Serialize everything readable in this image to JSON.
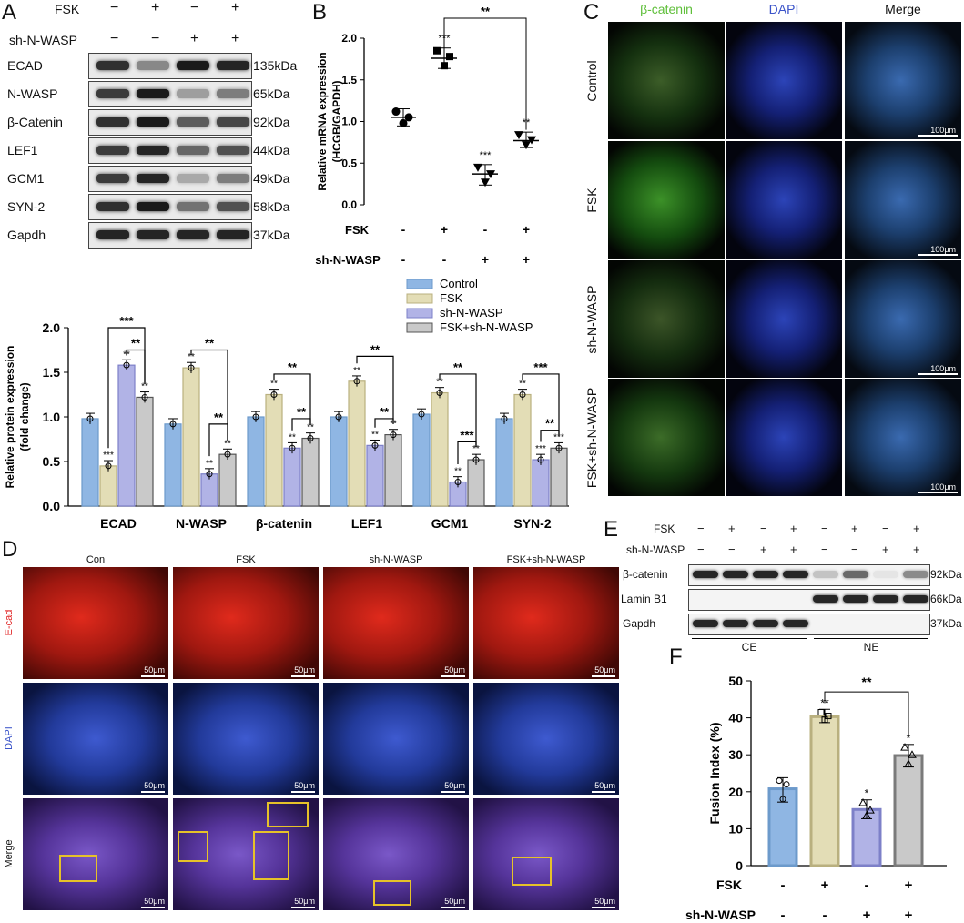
{
  "panels": {
    "A": "A",
    "B": "B",
    "C": "C",
    "D": "D",
    "E": "E",
    "F": "F"
  },
  "panelA": {
    "header_rows": [
      {
        "label": "FSK",
        "signs": [
          "−",
          "+",
          "−",
          "+"
        ]
      },
      {
        "label": "sh-N-WASP",
        "signs": [
          "−",
          "−",
          "+",
          "+"
        ]
      }
    ],
    "blots": [
      {
        "name": "ECAD",
        "kda": "135kDa",
        "intensity": [
          0.85,
          0.45,
          0.95,
          0.9
        ]
      },
      {
        "name": "N-WASP",
        "kda": "65kDa",
        "intensity": [
          0.8,
          0.95,
          0.35,
          0.5
        ]
      },
      {
        "name": "β-Catenin",
        "kda": "92kDa",
        "intensity": [
          0.85,
          0.95,
          0.65,
          0.75
        ]
      },
      {
        "name": "LEF1",
        "kda": "44kDa",
        "intensity": [
          0.8,
          0.9,
          0.6,
          0.7
        ]
      },
      {
        "name": "GCM1",
        "kda": "49kDa",
        "intensity": [
          0.8,
          0.9,
          0.3,
          0.5
        ]
      },
      {
        "name": "SYN-2",
        "kda": "58kDa",
        "intensity": [
          0.85,
          0.95,
          0.55,
          0.7
        ]
      },
      {
        "name": "Gapdh",
        "kda": "37kDa",
        "intensity": [
          0.9,
          0.9,
          0.9,
          0.9
        ]
      }
    ]
  },
  "chart_data": [
    {
      "type": "scatter",
      "panel": "B",
      "ylabel": "Relative mRNA expression (HCGB/GAPDH)",
      "ylim": [
        0,
        2.0
      ],
      "yticks": [
        "0.0",
        "0.5",
        "1.0",
        "1.5",
        "2.0"
      ],
      "row_labels": [
        "FSK",
        "sh-N-WASP"
      ],
      "groups": [
        {
          "fsk": "-",
          "sh": "-",
          "mean": 1.05,
          "points": [
            1.12,
            1.05,
            0.98
          ],
          "sig": ""
        },
        {
          "fsk": "+",
          "sh": "-",
          "mean": 1.76,
          "points": [
            1.85,
            1.78,
            1.67
          ],
          "sig": "***"
        },
        {
          "fsk": "-",
          "sh": "+",
          "mean": 0.37,
          "points": [
            0.45,
            0.37,
            0.27
          ],
          "sig": "***"
        },
        {
          "fsk": "+",
          "sh": "+",
          "mean": 0.77,
          "points": [
            0.84,
            0.78,
            0.72
          ],
          "sig": "**"
        }
      ],
      "bracket": {
        "from": 1,
        "to": 3,
        "label": "**"
      }
    },
    {
      "type": "bar",
      "panel": "A",
      "ylabel": "Relative protein expression (fold change)",
      "ylim": [
        0,
        2.0
      ],
      "yticks": [
        "0.0",
        "0.5",
        "1.0",
        "1.5",
        "2.0"
      ],
      "categories": [
        "ECAD",
        "N-WASP",
        "β-catenin",
        "LEF1",
        "GCM1",
        "SYN-2"
      ],
      "series": [
        {
          "name": "Control",
          "color": "#8fb6e3",
          "values": [
            0.98,
            0.92,
            1.0,
            1.0,
            1.03,
            0.98
          ]
        },
        {
          "name": "FSK",
          "color": "#e3ddb6",
          "values": [
            0.45,
            1.55,
            1.25,
            1.4,
            1.27,
            1.25
          ]
        },
        {
          "name": "sh-N-WASP",
          "color": "#b1b3e6",
          "values": [
            1.58,
            0.36,
            0.65,
            0.68,
            0.27,
            0.52
          ]
        },
        {
          "name": "FSK+sh-N-WASP",
          "color": "#c9c9c9",
          "values": [
            1.22,
            0.58,
            0.76,
            0.8,
            0.52,
            0.65
          ]
        }
      ],
      "star_labels": [
        [
          "",
          "***",
          "**",
          "**"
        ],
        [
          "",
          "**",
          "**",
          "**"
        ],
        [
          "",
          "**",
          "**",
          "**"
        ],
        [
          "",
          "**",
          "**",
          "**"
        ],
        [
          "",
          "**",
          "**",
          "**"
        ],
        [
          "",
          "**",
          "***",
          "***"
        ]
      ],
      "brackets": [
        {
          "cat": 0,
          "from": 1,
          "to": 3,
          "label": "***",
          "level": 2.0
        },
        {
          "cat": 0,
          "from": 2,
          "to": 3,
          "label": "**",
          "level": 1.75
        },
        {
          "cat": 1,
          "from": 1,
          "to": 3,
          "label": "**",
          "level": 1.75
        },
        {
          "cat": 1,
          "from": 2,
          "to": 3,
          "label": "**",
          "level": 0.92
        },
        {
          "cat": 2,
          "from": 1,
          "to": 3,
          "label": "**",
          "level": 1.48
        },
        {
          "cat": 2,
          "from": 2,
          "to": 3,
          "label": "**",
          "level": 0.98
        },
        {
          "cat": 3,
          "from": 1,
          "to": 3,
          "label": "**",
          "level": 1.68
        },
        {
          "cat": 3,
          "from": 2,
          "to": 3,
          "label": "**",
          "level": 0.98
        },
        {
          "cat": 4,
          "from": 1,
          "to": 3,
          "label": "**",
          "level": 1.48
        },
        {
          "cat": 4,
          "from": 2,
          "to": 3,
          "label": "***",
          "level": 0.72
        },
        {
          "cat": 5,
          "from": 1,
          "to": 3,
          "label": "***",
          "level": 1.48
        },
        {
          "cat": 5,
          "from": 2,
          "to": 3,
          "label": "**",
          "level": 0.85
        }
      ]
    },
    {
      "type": "bar",
      "panel": "F",
      "ylabel": "Fusion Index (%)",
      "ylim": [
        0,
        50
      ],
      "yticks": [
        "0",
        "10",
        "20",
        "30",
        "40",
        "50"
      ],
      "row_labels": [
        "FSK",
        "sh-N-WASP"
      ],
      "groups": [
        {
          "fsk": "-",
          "sh": "-",
          "value": 20.8,
          "color": "#8fb6e3",
          "edge": "#6c9acb",
          "points": [
            23,
            22,
            18
          ],
          "sig": ""
        },
        {
          "fsk": "+",
          "sh": "-",
          "value": 40.3,
          "color": "#e3ddb6",
          "edge": "#b9b07f",
          "points": [
            41.5,
            40.5,
            39.5
          ],
          "sig": "**"
        },
        {
          "fsk": "-",
          "sh": "+",
          "value": 15.2,
          "color": "#b1b3e6",
          "edge": "#7d80c8",
          "points": [
            17,
            15,
            13.5
          ],
          "sig": "*"
        },
        {
          "fsk": "+",
          "sh": "+",
          "value": 29.8,
          "color": "#c9c9c9",
          "edge": "#7a7a7a",
          "points": [
            32,
            30,
            27.5
          ],
          "sig": "*"
        }
      ],
      "bracket": {
        "from": 1,
        "to": 3,
        "label": "**"
      }
    }
  ],
  "panelC": {
    "columns": [
      "β-catenin",
      "DAPI",
      "Merge"
    ],
    "rows": [
      "Control",
      "FSK",
      "sh-N-WASP",
      "FSK+sh-N-WASP"
    ],
    "scale": "100μm"
  },
  "panelD": {
    "columns": [
      "Con",
      "FSK",
      "sh-N-WASP",
      "FSK+sh-N-WASP"
    ],
    "rows": [
      "E-cad",
      "DAPI",
      "Merge"
    ],
    "scale": "50μm"
  },
  "panelE": {
    "header_rows": [
      {
        "label": "FSK",
        "signs": [
          "−",
          "+",
          "−",
          "+",
          "−",
          "+",
          "−",
          "+"
        ]
      },
      {
        "label": "sh-N-WASP",
        "signs": [
          "−",
          "−",
          "+",
          "+",
          "−",
          "−",
          "+",
          "+"
        ]
      }
    ],
    "blots": [
      {
        "name": "β-catenin",
        "kda": "92kDa",
        "intensity": [
          0.9,
          0.9,
          0.9,
          0.9,
          0.2,
          0.6,
          0.05,
          0.45
        ]
      },
      {
        "name": "Lamin B1",
        "kda": "66kDa",
        "intensity": [
          0,
          0,
          0,
          0,
          0.9,
          0.9,
          0.9,
          0.9
        ]
      },
      {
        "name": "Gapdh",
        "kda": "37kDa",
        "intensity": [
          0.9,
          0.9,
          0.9,
          0.9,
          0,
          0,
          0,
          0
        ]
      }
    ],
    "fractions": [
      "CE",
      "NE"
    ]
  },
  "colors": {
    "green": "#5fbf3a",
    "blue": "#3a53c9",
    "red": "#e02020",
    "yellow": "#e6c229"
  }
}
